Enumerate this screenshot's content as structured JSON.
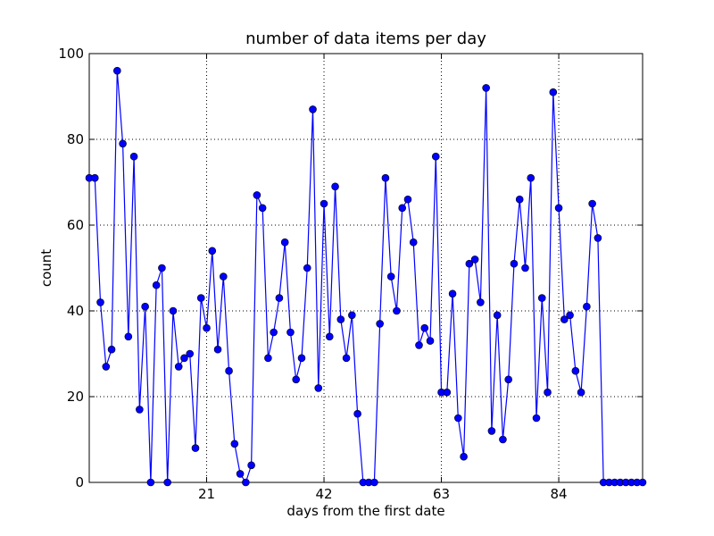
{
  "chart_data": {
    "type": "line",
    "title": "number of data items per day",
    "xlabel": "days from the first date",
    "ylabel": "count",
    "xlim": [
      0,
      99
    ],
    "ylim": [
      0,
      100
    ],
    "xticks": [
      21,
      42,
      63,
      84
    ],
    "yticks": [
      0,
      20,
      40,
      60,
      80,
      100
    ],
    "grid": true,
    "line_color": "#0000ff",
    "marker": "circle",
    "series": [
      {
        "x": [
          0,
          1,
          2,
          3,
          4,
          5,
          6,
          7,
          8,
          9,
          10,
          11,
          12,
          13,
          14,
          15,
          16,
          17,
          18,
          19,
          20,
          21,
          22,
          23,
          24,
          25,
          26,
          27,
          28,
          29,
          30,
          31,
          32,
          33,
          34,
          35,
          36,
          37,
          38,
          39,
          40,
          41,
          42,
          43,
          44,
          45,
          46,
          47,
          48,
          49,
          50,
          51,
          52,
          53,
          54,
          55,
          56,
          57,
          58,
          59,
          60,
          61,
          62,
          63,
          64,
          65,
          66,
          67,
          68,
          69,
          70,
          71,
          72,
          73,
          74,
          75,
          76,
          77,
          78,
          79,
          80,
          81,
          82,
          83,
          84,
          85,
          86,
          87,
          88,
          89,
          90,
          91,
          92,
          93,
          94,
          95,
          96,
          97,
          98,
          99
        ],
        "values": [
          71,
          71,
          42,
          27,
          31,
          96,
          79,
          34,
          76,
          17,
          41,
          0,
          46,
          50,
          0,
          40,
          27,
          29,
          30,
          8,
          43,
          36,
          54,
          31,
          48,
          26,
          9,
          2,
          0,
          4,
          67,
          64,
          29,
          35,
          43,
          56,
          35,
          24,
          29,
          50,
          87,
          22,
          65,
          34,
          69,
          38,
          29,
          39,
          16,
          0,
          0,
          0,
          37,
          71,
          48,
          40,
          64,
          66,
          56,
          32,
          36,
          33,
          76,
          21,
          21,
          44,
          15,
          6,
          51,
          52,
          42,
          92,
          12,
          39,
          10,
          24,
          51,
          66,
          50,
          71,
          15,
          43,
          21,
          91,
          64,
          38,
          39,
          26,
          21,
          41,
          65,
          57,
          0,
          0,
          0,
          0,
          0,
          0,
          0,
          0
        ]
      }
    ]
  }
}
